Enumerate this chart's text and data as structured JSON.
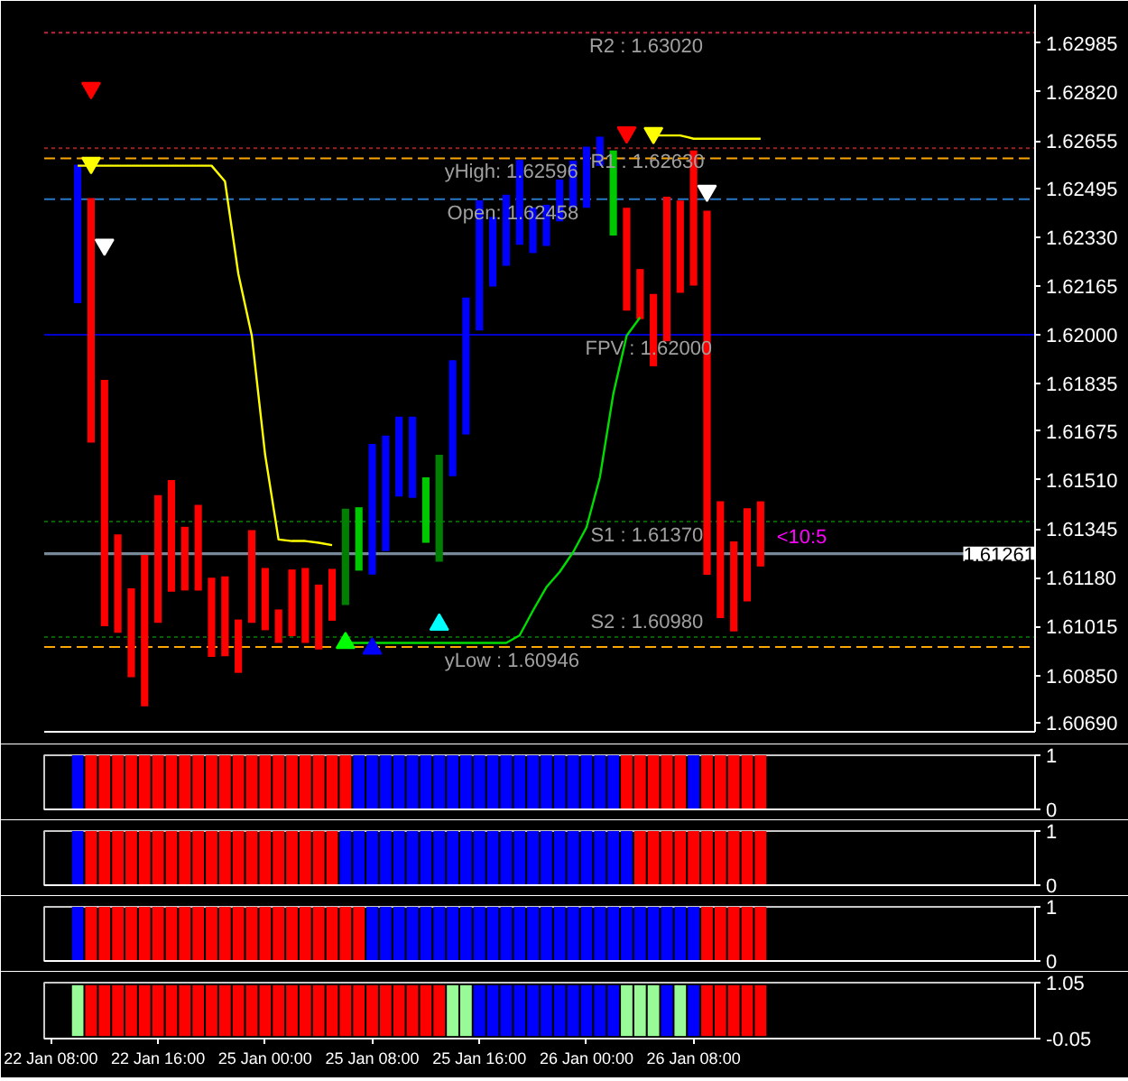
{
  "chart_data": [
    {
      "type": "bar",
      "categories": [
        null,
        null,
        null,
        null,
        null,
        null,
        null,
        null,
        null,
        null,
        null,
        null,
        null,
        null,
        null,
        null,
        null,
        null,
        null,
        null,
        null,
        null,
        null,
        null,
        null,
        null,
        null,
        null,
        null,
        null,
        null,
        null,
        null,
        null,
        null,
        null,
        null,
        null,
        null,
        null,
        null,
        null,
        null,
        null,
        null,
        null,
        null,
        null,
        null,
        null,
        null,
        null,
        null,
        null,
        null,
        null,
        null,
        null,
        null,
        null,
        null,
        null,
        null,
        null,
        null,
        null,
        null,
        null,
        null,
        null,
        null,
        null,
        null,
        null
      ],
      "series": [
        {
          "type": "bar",
          "base": [
            null,
            null,
            1.62107,
            1.61636,
            1.61016,
            1.60994,
            1.60844,
            1.60746,
            1.61028,
            1.61133,
            1.61137,
            1.61137,
            1.60913,
            1.60915,
            1.60859,
            1.61028,
            1.61003,
            1.6096,
            1.60983,
            1.6096,
            1.60938,
            1.61035,
            1.61088,
            1.61204,
            1.61191,
            1.6127,
            1.61454,
            1.6145,
            1.61298,
            1.61234,
            1.61523,
            1.61664,
            1.62015,
            1.62163,
            1.62233,
            1.62304,
            1.62276,
            1.623,
            1.62383,
            1.62429,
            1.62429,
            1.6257,
            1.62335,
            1.62082,
            1.62053,
            1.61894,
            1.61978,
            1.62142,
            1.62166,
            1.6119,
            1.61044,
            1.60999,
            1.611,
            1.61218,
            null,
            null,
            null,
            null,
            null,
            null,
            null,
            null,
            null,
            null,
            null,
            null,
            null,
            null,
            null,
            null,
            null,
            null,
            null,
            null
          ],
          "values": [
            null,
            null,
            0.00467,
            0.00826,
            0.00832,
            0.00332,
            0.003,
            0.00511,
            0.00431,
            0.00377,
            0.00215,
            0.00289,
            0.00267,
            0.0027,
            0.0018,
            0.00313,
            0.0021,
            0.00113,
            0.00225,
            0.00253,
            0.00219,
            0.00175,
            0.00325,
            0.00214,
            0.00441,
            0.0039,
            0.0027,
            0.00274,
            0.00221,
            0.00361,
            0.00391,
            0.00462,
            0.00439,
            0.00235,
            0.0024,
            0.00286,
            0.00154,
            0.00139,
            0.00141,
            0.00159,
            0.00206,
            0.00099,
            0.00287,
            0.00347,
            0.00169,
            0.00244,
            0.00488,
            0.00311,
            0.00456,
            0.01229,
            0.00394,
            0.00304,
            0.00315,
            0.0022,
            null,
            null,
            null,
            null,
            null,
            null,
            null,
            null,
            null,
            null,
            null,
            null,
            null,
            null,
            null,
            null,
            null,
            null,
            null,
            null
          ],
          "colors": [
            null,
            null,
            "#0000ff",
            "#ff0000",
            "#ff0000",
            "#ff0000",
            "#ff0000",
            "#ff0000",
            "#ff0000",
            "#ff0000",
            "#ff0000",
            "#ff0000",
            "#ff0000",
            "#ff0000",
            "#ff0000",
            "#ff0000",
            "#ff0000",
            "#ff0000",
            "#ff0000",
            "#ff0000",
            "#ff0000",
            "#ff0000",
            "#008000",
            "#00c800",
            "#0000ff",
            "#0000ff",
            "#0000ff",
            "#0000ff",
            "#00c800",
            "#008000",
            "#0000ff",
            "#0000ff",
            "#0000ff",
            "#0000ff",
            "#0000ff",
            "#0000ff",
            "#0000ff",
            "#0000ff",
            "#0000ff",
            "#0000ff",
            "#0000ff",
            "#0000ff",
            "#00c800",
            "#ff0000",
            "#ff0000",
            "#ff0000",
            "#ff0000",
            "#ff0000",
            "#ff0000",
            "#ff0000",
            "#ff0000",
            "#ff0000",
            "#ff0000",
            "#ff0000",
            null,
            null,
            null,
            null,
            null,
            null,
            null,
            null,
            null,
            null,
            null,
            null,
            null,
            null,
            null,
            null,
            null,
            null,
            null,
            null
          ]
        },
        {
          "type": "line",
          "color": "#ffff00",
          "values": [
            null,
            null,
            1.62571,
            1.62571,
            1.62571,
            1.62571,
            1.62571,
            1.62571,
            1.62571,
            1.62571,
            1.62571,
            1.62571,
            1.62571,
            1.62518,
            1.62205,
            1.61998,
            1.61595,
            1.61309,
            1.61304,
            1.61304,
            1.61298,
            1.6129,
            null,
            null,
            null,
            null,
            null,
            null,
            null,
            null,
            null,
            null,
            null,
            null,
            null,
            null,
            null,
            null,
            null,
            null,
            null,
            null,
            null,
            null,
            null,
            1.62673,
            1.62673,
            1.62673,
            1.62662,
            1.62662,
            1.62662,
            1.62662,
            1.62662,
            1.62662,
            null,
            null,
            null,
            null,
            null,
            null,
            null,
            null,
            null,
            null,
            null,
            null,
            null,
            null,
            null,
            null,
            null,
            null,
            null,
            null
          ]
        },
        {
          "type": "line",
          "color": "#00dd00",
          "values": [
            null,
            null,
            null,
            null,
            null,
            null,
            null,
            null,
            null,
            null,
            null,
            null,
            null,
            null,
            null,
            null,
            null,
            null,
            null,
            null,
            null,
            null,
            1.6096,
            1.6096,
            1.6096,
            1.6096,
            1.6096,
            1.6096,
            1.6096,
            1.6096,
            1.6096,
            1.6096,
            1.6096,
            1.6096,
            1.6096,
            1.60985,
            1.61069,
            1.61148,
            1.612,
            1.61266,
            1.6135,
            1.61519,
            1.618,
            1.61997,
            1.62059,
            null,
            null,
            null,
            null,
            null,
            null,
            null,
            null,
            null,
            null,
            null,
            null,
            null,
            null,
            null,
            null,
            null,
            null,
            null,
            null,
            null,
            null,
            null,
            null,
            null,
            null,
            null,
            null,
            null
          ]
        },
        {
          "type": "scatter",
          "marker": "triangle",
          "color": "#ff0000",
          "values": [
            null,
            null,
            null,
            1.62833,
            null,
            null,
            null,
            null,
            null,
            null,
            null,
            null,
            null,
            null,
            null,
            null,
            null,
            null,
            null,
            null,
            null,
            null,
            null,
            null,
            null,
            null,
            null,
            null,
            null,
            null,
            null,
            null,
            null,
            null,
            null,
            null,
            null,
            null,
            null,
            null,
            null,
            null,
            null,
            1.62683,
            null,
            null,
            null,
            null,
            null,
            null,
            null,
            null,
            null,
            null,
            null,
            null,
            null,
            null,
            null,
            null,
            null,
            null,
            null,
            null,
            null,
            null,
            null,
            null,
            null,
            null,
            null,
            null,
            null,
            null
          ]
        },
        {
          "type": "scatter",
          "marker": "triangle",
          "color": "#ffff00",
          "values": [
            null,
            null,
            null,
            1.6258,
            null,
            null,
            null,
            null,
            null,
            null,
            null,
            null,
            null,
            null,
            null,
            null,
            null,
            null,
            null,
            null,
            null,
            null,
            null,
            null,
            null,
            null,
            null,
            null,
            null,
            null,
            null,
            null,
            null,
            null,
            null,
            null,
            null,
            null,
            null,
            null,
            null,
            null,
            null,
            null,
            null,
            1.62681,
            null,
            null,
            null,
            null,
            null,
            null,
            null,
            null,
            null,
            null,
            null,
            null,
            null,
            null,
            null,
            null,
            null,
            null,
            null,
            null,
            null,
            null,
            null,
            null,
            null,
            null,
            null,
            null
          ]
        },
        {
          "type": "scatter",
          "marker": "triangle",
          "color": "#ffffff",
          "values": [
            null,
            null,
            null,
            null,
            1.62304,
            null,
            null,
            null,
            null,
            null,
            null,
            null,
            null,
            null,
            null,
            null,
            null,
            null,
            null,
            null,
            null,
            null,
            null,
            null,
            null,
            null,
            null,
            null,
            null,
            null,
            null,
            null,
            null,
            null,
            null,
            null,
            null,
            null,
            null,
            null,
            null,
            null,
            null,
            null,
            null,
            null,
            null,
            null,
            null,
            1.62486,
            null,
            null,
            null,
            null,
            null,
            null,
            null,
            null,
            null,
            null,
            null,
            null,
            null,
            null,
            null,
            null,
            null,
            null,
            null,
            null,
            null,
            null,
            null,
            null
          ]
        },
        {
          "type": "scatter",
          "marker": "triangle",
          "color": "#00ff00",
          "values": [
            null,
            null,
            null,
            null,
            null,
            null,
            null,
            null,
            null,
            null,
            null,
            null,
            null,
            null,
            null,
            null,
            null,
            null,
            null,
            null,
            null,
            null,
            1.6096,
            null,
            null,
            null,
            null,
            null,
            null,
            null,
            null,
            null,
            null,
            null,
            null,
            null,
            null,
            null,
            null,
            null,
            null,
            null,
            null,
            null,
            null,
            null,
            null,
            null,
            null,
            null,
            null,
            null,
            null,
            null,
            null,
            null,
            null,
            null,
            null,
            null,
            null,
            null,
            null,
            null,
            null,
            null,
            null,
            null,
            null,
            null,
            null,
            null,
            null,
            null
          ]
        },
        {
          "type": "scatter",
          "marker": "triangle",
          "color": "#0000ff",
          "values": [
            null,
            null,
            null,
            null,
            null,
            null,
            null,
            null,
            null,
            null,
            null,
            null,
            null,
            null,
            null,
            null,
            null,
            null,
            null,
            null,
            null,
            null,
            null,
            null,
            1.60941,
            null,
            null,
            null,
            null,
            null,
            null,
            null,
            null,
            null,
            null,
            null,
            null,
            null,
            null,
            null,
            null,
            null,
            null,
            null,
            null,
            null,
            null,
            null,
            null,
            null,
            null,
            null,
            null,
            null,
            null,
            null,
            null,
            null,
            null,
            null,
            null,
            null,
            null,
            null,
            null,
            null,
            null,
            null,
            null,
            null,
            null,
            null,
            null,
            null
          ]
        },
        {
          "type": "scatter",
          "marker": "triangle",
          "color": "#00ffff",
          "values": [
            null,
            null,
            null,
            null,
            null,
            null,
            null,
            null,
            null,
            null,
            null,
            null,
            null,
            null,
            null,
            null,
            null,
            null,
            null,
            null,
            null,
            null,
            null,
            null,
            null,
            null,
            null,
            null,
            null,
            1.61022,
            null,
            null,
            null,
            null,
            null,
            null,
            null,
            null,
            null,
            null,
            null,
            null,
            null,
            null,
            null,
            null,
            null,
            null,
            null,
            null,
            null,
            null,
            null,
            null,
            null,
            null,
            null,
            null,
            null,
            null,
            null,
            null,
            null,
            null,
            null,
            null,
            null,
            null,
            null,
            null,
            null,
            null,
            null,
            null
          ]
        }
      ],
      "ylim": [
        1.6066,
        1.63115
      ],
      "yticks": [
        1.62985,
        {
          "value": 1.6282,
          "label": "1.62820"
        },
        1.62655,
        1.62495,
        {
          "value": 1.6233,
          "label": "1.62330"
        },
        1.62165,
        {
          "value": 1.62,
          "label": "1.62000"
        },
        1.61835,
        1.61675,
        {
          "value": 1.6151,
          "label": "1.61510"
        },
        1.61345,
        {
          "value": 1.6118,
          "label": "1.61180"
        },
        1.61015,
        {
          "value": 1.6085,
          "label": "1.60850"
        },
        {
          "value": 1.6069,
          "label": "1.60690"
        }
      ],
      "ref_lines": [
        {
          "axis": "y",
          "value": 1.6302,
          "label": "R2 : 1.63020",
          "color": "#c8203c",
          "line_style": "dotted"
        },
        {
          "axis": "y",
          "value": 1.6263,
          "label": "R1 : 1.62630",
          "color": "#a01e1e",
          "line_style": "dotted"
        },
        {
          "axis": "y",
          "value": 1.62596,
          "label": "yHigh: 1.62596",
          "color": "#ffa500",
          "line_style": "dashed"
        },
        {
          "axis": "y",
          "value": 1.62458,
          "label": "Open: 1.62458",
          "color": "#2878c8",
          "line_style": "dashed"
        },
        {
          "axis": "y",
          "value": 1.62,
          "label": "FPV : 1.62000",
          "color": "#0000cd",
          "line_style": "solid"
        },
        {
          "axis": "y",
          "value": 1.6137,
          "label": "S1 : 1.61370",
          "color": "#006400",
          "line_style": "dotted"
        },
        {
          "axis": "y",
          "value": 1.6098,
          "label": "S2 : 1.60980",
          "color": "#006400",
          "line_style": "dotted"
        },
        {
          "axis": "y",
          "value": 1.60946,
          "label": "yLow : 1.60946",
          "color": "#ffa500",
          "line_style": "dashed"
        },
        {
          "axis": "y",
          "value": 1.61261,
          "label": "1.61261",
          "color": "#778899",
          "line_style": "solid"
        }
      ],
      "annotations": [
        "<10:5"
      ]
    },
    {
      "type": "bar",
      "categories": [
        null,
        null,
        null,
        null,
        null,
        null,
        null,
        null,
        null,
        null,
        null,
        null,
        null,
        null,
        null,
        null,
        null,
        null,
        null,
        null,
        null,
        null,
        null,
        null,
        null,
        null,
        null,
        null,
        null,
        null,
        null,
        null,
        null,
        null,
        null,
        null,
        null,
        null,
        null,
        null,
        null,
        null,
        null,
        null,
        null,
        null,
        null,
        null,
        null,
        null,
        null,
        null,
        null,
        null,
        null,
        null,
        null,
        null,
        null,
        null,
        null,
        null,
        null,
        null,
        null,
        null,
        null,
        null,
        null,
        null,
        null,
        null,
        null,
        null
      ],
      "values": [
        null,
        null,
        1,
        1,
        1,
        1,
        1,
        1,
        1,
        1,
        1,
        1,
        1,
        1,
        1,
        1,
        1,
        1,
        1,
        1,
        1,
        1,
        1,
        1,
        1,
        1,
        1,
        1,
        1,
        1,
        1,
        1,
        1,
        1,
        1,
        1,
        1,
        1,
        1,
        1,
        1,
        1,
        1,
        1,
        1,
        1,
        1,
        1,
        1,
        1,
        1,
        1,
        1,
        1,
        null,
        null,
        null,
        null,
        null,
        null,
        null,
        null,
        null,
        null,
        null,
        null,
        null,
        null,
        null,
        null,
        null,
        null,
        null,
        null
      ],
      "colors": [
        null,
        null,
        "#0000ff",
        "#ff0000",
        "#ff0000",
        "#ff0000",
        "#ff0000",
        "#ff0000",
        "#ff0000",
        "#ff0000",
        "#ff0000",
        "#ff0000",
        "#ff0000",
        "#ff0000",
        "#ff0000",
        "#ff0000",
        "#ff0000",
        "#ff0000",
        "#ff0000",
        "#ff0000",
        "#ff0000",
        "#ff0000",
        "#ff0000",
        "#0000ff",
        "#0000ff",
        "#0000ff",
        "#0000ff",
        "#0000ff",
        "#0000ff",
        "#0000ff",
        "#0000ff",
        "#0000ff",
        "#0000ff",
        "#0000ff",
        "#0000ff",
        "#0000ff",
        "#0000ff",
        "#0000ff",
        "#0000ff",
        "#0000ff",
        "#0000ff",
        "#0000ff",
        "#0000ff",
        "#ff0000",
        "#ff0000",
        "#ff0000",
        "#ff0000",
        "#ff0000",
        "#0000ff",
        "#ff0000",
        "#ff0000",
        "#ff0000",
        "#ff0000",
        "#ff0000",
        null,
        null,
        null,
        null,
        null,
        null,
        null,
        null,
        null,
        null,
        null,
        null,
        null,
        null,
        null,
        null,
        null,
        null,
        null,
        null
      ],
      "ylim": [
        0,
        1
      ],
      "yticks": [
        1,
        0
      ]
    },
    {
      "type": "bar",
      "categories": [
        null,
        null,
        null,
        null,
        null,
        null,
        null,
        null,
        null,
        null,
        null,
        null,
        null,
        null,
        null,
        null,
        null,
        null,
        null,
        null,
        null,
        null,
        null,
        null,
        null,
        null,
        null,
        null,
        null,
        null,
        null,
        null,
        null,
        null,
        null,
        null,
        null,
        null,
        null,
        null,
        null,
        null,
        null,
        null,
        null,
        null,
        null,
        null,
        null,
        null,
        null,
        null,
        null,
        null,
        null,
        null,
        null,
        null,
        null,
        null,
        null,
        null,
        null,
        null,
        null,
        null,
        null,
        null,
        null,
        null,
        null,
        null,
        null,
        null
      ],
      "values": [
        null,
        null,
        1,
        1,
        1,
        1,
        1,
        1,
        1,
        1,
        1,
        1,
        1,
        1,
        1,
        1,
        1,
        1,
        1,
        1,
        1,
        1,
        1,
        1,
        1,
        1,
        1,
        1,
        1,
        1,
        1,
        1,
        1,
        1,
        1,
        1,
        1,
        1,
        1,
        1,
        1,
        1,
        1,
        1,
        1,
        1,
        1,
        1,
        1,
        1,
        1,
        1,
        1,
        1,
        null,
        null,
        null,
        null,
        null,
        null,
        null,
        null,
        null,
        null,
        null,
        null,
        null,
        null,
        null,
        null,
        null,
        null,
        null,
        null
      ],
      "colors": [
        null,
        null,
        "#0000ff",
        "#ff0000",
        "#ff0000",
        "#ff0000",
        "#ff0000",
        "#ff0000",
        "#ff0000",
        "#ff0000",
        "#ff0000",
        "#ff0000",
        "#ff0000",
        "#ff0000",
        "#ff0000",
        "#ff0000",
        "#ff0000",
        "#ff0000",
        "#ff0000",
        "#ff0000",
        "#ff0000",
        "#ff0000",
        "#0000ff",
        "#0000ff",
        "#0000ff",
        "#0000ff",
        "#0000ff",
        "#0000ff",
        "#0000ff",
        "#0000ff",
        "#0000ff",
        "#0000ff",
        "#0000ff",
        "#0000ff",
        "#0000ff",
        "#0000ff",
        "#0000ff",
        "#0000ff",
        "#0000ff",
        "#0000ff",
        "#0000ff",
        "#0000ff",
        "#0000ff",
        "#0000ff",
        "#ff0000",
        "#ff0000",
        "#ff0000",
        "#ff0000",
        "#ff0000",
        "#ff0000",
        "#ff0000",
        "#ff0000",
        "#ff0000",
        "#ff0000",
        null,
        null,
        null,
        null,
        null,
        null,
        null,
        null,
        null,
        null,
        null,
        null,
        null,
        null,
        null,
        null,
        null,
        null,
        null,
        null
      ],
      "ylim": [
        0,
        1
      ],
      "yticks": [
        1,
        0
      ]
    },
    {
      "type": "bar",
      "categories": [
        null,
        null,
        null,
        null,
        null,
        null,
        null,
        null,
        null,
        null,
        null,
        null,
        null,
        null,
        null,
        null,
        null,
        null,
        null,
        null,
        null,
        null,
        null,
        null,
        null,
        null,
        null,
        null,
        null,
        null,
        null,
        null,
        null,
        null,
        null,
        null,
        null,
        null,
        null,
        null,
        null,
        null,
        null,
        null,
        null,
        null,
        null,
        null,
        null,
        null,
        null,
        null,
        null,
        null,
        null,
        null,
        null,
        null,
        null,
        null,
        null,
        null,
        null,
        null,
        null,
        null,
        null,
        null,
        null,
        null,
        null,
        null,
        null,
        null
      ],
      "values": [
        null,
        null,
        1,
        1,
        1,
        1,
        1,
        1,
        1,
        1,
        1,
        1,
        1,
        1,
        1,
        1,
        1,
        1,
        1,
        1,
        1,
        1,
        1,
        1,
        1,
        1,
        1,
        1,
        1,
        1,
        1,
        1,
        1,
        1,
        1,
        1,
        1,
        1,
        1,
        1,
        1,
        1,
        1,
        1,
        1,
        1,
        1,
        1,
        1,
        1,
        1,
        1,
        1,
        1,
        null,
        null,
        null,
        null,
        null,
        null,
        null,
        null,
        null,
        null,
        null,
        null,
        null,
        null,
        null,
        null,
        null,
        null,
        null,
        null
      ],
      "colors": [
        null,
        null,
        "#0000ff",
        "#ff0000",
        "#ff0000",
        "#ff0000",
        "#ff0000",
        "#ff0000",
        "#ff0000",
        "#ff0000",
        "#ff0000",
        "#ff0000",
        "#ff0000",
        "#ff0000",
        "#ff0000",
        "#ff0000",
        "#ff0000",
        "#ff0000",
        "#ff0000",
        "#ff0000",
        "#ff0000",
        "#ff0000",
        "#ff0000",
        "#ff0000",
        "#0000ff",
        "#0000ff",
        "#0000ff",
        "#0000ff",
        "#0000ff",
        "#0000ff",
        "#0000ff",
        "#0000ff",
        "#0000ff",
        "#0000ff",
        "#0000ff",
        "#0000ff",
        "#0000ff",
        "#0000ff",
        "#0000ff",
        "#0000ff",
        "#0000ff",
        "#0000ff",
        "#0000ff",
        "#0000ff",
        "#0000ff",
        "#0000ff",
        "#0000ff",
        "#0000ff",
        "#0000ff",
        "#ff0000",
        "#ff0000",
        "#ff0000",
        "#ff0000",
        "#ff0000",
        null,
        null,
        null,
        null,
        null,
        null,
        null,
        null,
        null,
        null,
        null,
        null,
        null,
        null,
        null,
        null,
        null,
        null,
        null,
        null
      ],
      "ylim": [
        0,
        1
      ],
      "yticks": [
        1,
        0
      ]
    },
    {
      "type": "bar",
      "categories": [
        "22 Jan 08:00",
        null,
        null,
        null,
        null,
        null,
        null,
        null,
        "22 Jan 16:00",
        null,
        null,
        null,
        null,
        null,
        null,
        null,
        "25 Jan 00:00",
        null,
        null,
        null,
        null,
        null,
        null,
        null,
        "25 Jan 08:00",
        null,
        null,
        null,
        null,
        null,
        null,
        null,
        "25 Jan 16:00",
        null,
        null,
        null,
        null,
        null,
        null,
        null,
        "26 Jan 00:00",
        null,
        null,
        null,
        null,
        null,
        null,
        null,
        "26 Jan 08:00",
        null,
        null,
        null,
        null,
        null,
        null,
        null,
        null,
        null,
        null,
        null,
        null,
        null,
        null,
        null,
        null,
        null,
        null,
        null,
        null,
        null,
        null,
        null,
        null,
        null
      ],
      "values": [
        null,
        null,
        1,
        1,
        1,
        1,
        1,
        1,
        1,
        1,
        1,
        1,
        1,
        1,
        1,
        1,
        1,
        1,
        1,
        1,
        1,
        1,
        1,
        1,
        1,
        1,
        1,
        1,
        1,
        1,
        1,
        1,
        1,
        1,
        1,
        1,
        1,
        1,
        1,
        1,
        1,
        1,
        1,
        1,
        1,
        1,
        1,
        1,
        1,
        1,
        1,
        1,
        1,
        1,
        null,
        null,
        null,
        null,
        null,
        null,
        null,
        null,
        null,
        null,
        null,
        null,
        null,
        null,
        null,
        null,
        null,
        null,
        null,
        null
      ],
      "colors": [
        null,
        null,
        "#98fb98",
        "#ff0000",
        "#ff0000",
        "#ff0000",
        "#ff0000",
        "#ff0000",
        "#ff0000",
        "#ff0000",
        "#ff0000",
        "#ff0000",
        "#ff0000",
        "#ff0000",
        "#ff0000",
        "#ff0000",
        "#ff0000",
        "#ff0000",
        "#ff0000",
        "#ff0000",
        "#ff0000",
        "#ff0000",
        "#ff0000",
        "#ff0000",
        "#ff0000",
        "#ff0000",
        "#ff0000",
        "#ff0000",
        "#ff0000",
        "#ff0000",
        "#98fb98",
        "#98fb98",
        "#0000ff",
        "#0000ff",
        "#0000ff",
        "#0000ff",
        "#0000ff",
        "#0000ff",
        "#0000ff",
        "#0000ff",
        "#0000ff",
        "#0000ff",
        "#0000ff",
        "#98fb98",
        "#98fb98",
        "#98fb98",
        "#0000ff",
        "#98fb98",
        "#0000ff",
        "#ff0000",
        "#ff0000",
        "#ff0000",
        "#ff0000",
        "#ff0000",
        null,
        null,
        null,
        null,
        null,
        null,
        null,
        null,
        null,
        null,
        null,
        null,
        null,
        null,
        null,
        null,
        null,
        null,
        null,
        null
      ],
      "ylim": [
        -0.05,
        1.05
      ],
      "yticks": [
        1.05,
        -0.05
      ]
    }
  ]
}
